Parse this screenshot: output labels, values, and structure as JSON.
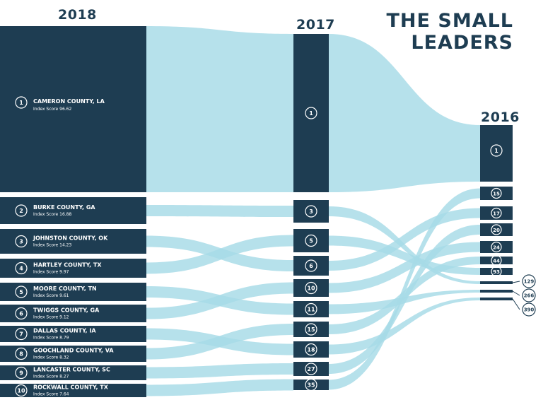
{
  "title": {
    "line1": "THE SMALL",
    "line2": "LEADERS"
  },
  "columns": {
    "y2018": "2018",
    "y2017": "2017",
    "y2016": "2016"
  },
  "colors": {
    "node": "#1e3d52",
    "flow": "#a6dbe6",
    "flowAlt": "#8fd1e0",
    "text": "#ffffff"
  },
  "counties": [
    {
      "rank": "1",
      "name": "CAMERON COUNTY, LA",
      "score": "Index Score 96.62",
      "r2017": "1",
      "r2016": "1"
    },
    {
      "rank": "2",
      "name": "BURKE COUNTY, GA",
      "score": "Index Score 16.88",
      "r2017": "3",
      "r2016": "129"
    },
    {
      "rank": "3",
      "name": "JOHNSTON COUNTY, OK",
      "score": "Index Score 14.23",
      "r2017": "6",
      "r2016": "17"
    },
    {
      "rank": "4",
      "name": "HARTLEY COUNTY, TX",
      "score": "Index Score 9.97",
      "r2017": "5",
      "r2016": "93"
    },
    {
      "rank": "5",
      "name": "MOORE COUNTY, TN",
      "score": "Index Score 9.61",
      "r2017": "11",
      "r2016": "266"
    },
    {
      "rank": "6",
      "name": "TWIGGS COUNTY, GA",
      "score": "Index Score 9.12",
      "r2017": "10",
      "r2016": "24"
    },
    {
      "rank": "7",
      "name": "DALLAS COUNTY, IA",
      "score": "Index Score 8.79",
      "r2017": "18",
      "r2016": "390"
    },
    {
      "rank": "8",
      "name": "GOOCHLAND COUNTY, VA",
      "score": "Index Score 8.32",
      "r2017": "15",
      "r2016": "44"
    },
    {
      "rank": "9",
      "name": "LANCASTER COUNTY, SC",
      "score": "Index Score 8.27",
      "r2017": "27",
      "r2016": "20"
    },
    {
      "rank": "10",
      "name": "ROCKWALL COUNTY, TX",
      "score": "Index Score 7.64",
      "r2017": "35",
      "r2016": "15"
    }
  ],
  "ranks2017": [
    "1",
    "3",
    "5",
    "6",
    "10",
    "11",
    "15",
    "18",
    "27",
    "35"
  ],
  "ranks2016": [
    "1",
    "15",
    "17",
    "20",
    "24",
    "44",
    "93",
    "129",
    "266",
    "390"
  ]
}
